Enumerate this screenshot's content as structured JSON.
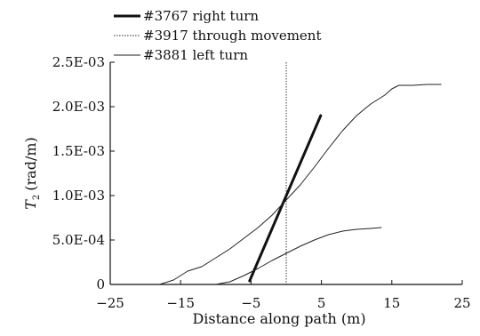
{
  "chart_data": {
    "type": "line",
    "xlabel": "Distance along path (m)",
    "ylabel": "T",
    "ylabel_subscript": "2",
    "ylabel_units": "(rad/m)",
    "xlim": [
      -25,
      25
    ],
    "ylim": [
      0,
      0.0025
    ],
    "xticks": [
      -25,
      -15,
      -5,
      5,
      15,
      25
    ],
    "xtick_labels": [
      "−25",
      "−15",
      "−5",
      "5",
      "15",
      "25"
    ],
    "yticks": [
      0,
      0.0005,
      0.001,
      0.0015,
      0.002,
      0.0025
    ],
    "ytick_labels": [
      "0",
      "5.0E-04",
      "1.0E-03",
      "1.5E-03",
      "2.0E-03",
      "2.5E-03"
    ],
    "grid": false,
    "legend_position": "top-left",
    "reference_line": {
      "x": 0,
      "style": "dotted"
    },
    "series": [
      {
        "name": "#3767 right turn",
        "color": "#111111",
        "style": "thick",
        "x": [
          -5.2,
          4.9
        ],
        "y": [
          4e-05,
          0.0019
        ]
      },
      {
        "name": "#3917 through movement",
        "color": "#333333",
        "style": "dotted",
        "x": [],
        "y": []
      },
      {
        "name": "#3881 left turn",
        "color": "#222222",
        "style": "thin",
        "x": [
          -18,
          -16,
          -15,
          -14,
          -12,
          -10,
          -8,
          -6,
          -4,
          -2,
          0,
          2,
          4,
          6,
          8,
          10,
          12,
          14,
          15,
          16,
          18,
          20,
          22
        ],
        "y": [
          0,
          5e-05,
          0.0001,
          0.00015,
          0.0002,
          0.0003,
          0.0004,
          0.00052,
          0.00064,
          0.00078,
          0.00095,
          0.00112,
          0.00132,
          0.00153,
          0.00173,
          0.0019,
          0.00203,
          0.00213,
          0.0022,
          0.00224,
          0.00224,
          0.00225,
          0.00225
        ]
      },
      {
        "name": "",
        "color": "#222222",
        "style": "thin",
        "x": [
          -10,
          -8,
          -6,
          -4,
          -2,
          0,
          2,
          4,
          6,
          8,
          10,
          12,
          13.5
        ],
        "y": [
          0,
          3e-05,
          0.0001,
          0.00018,
          0.00027,
          0.00035,
          0.00043,
          0.0005,
          0.00056,
          0.0006,
          0.00062,
          0.00063,
          0.00064
        ]
      }
    ]
  }
}
